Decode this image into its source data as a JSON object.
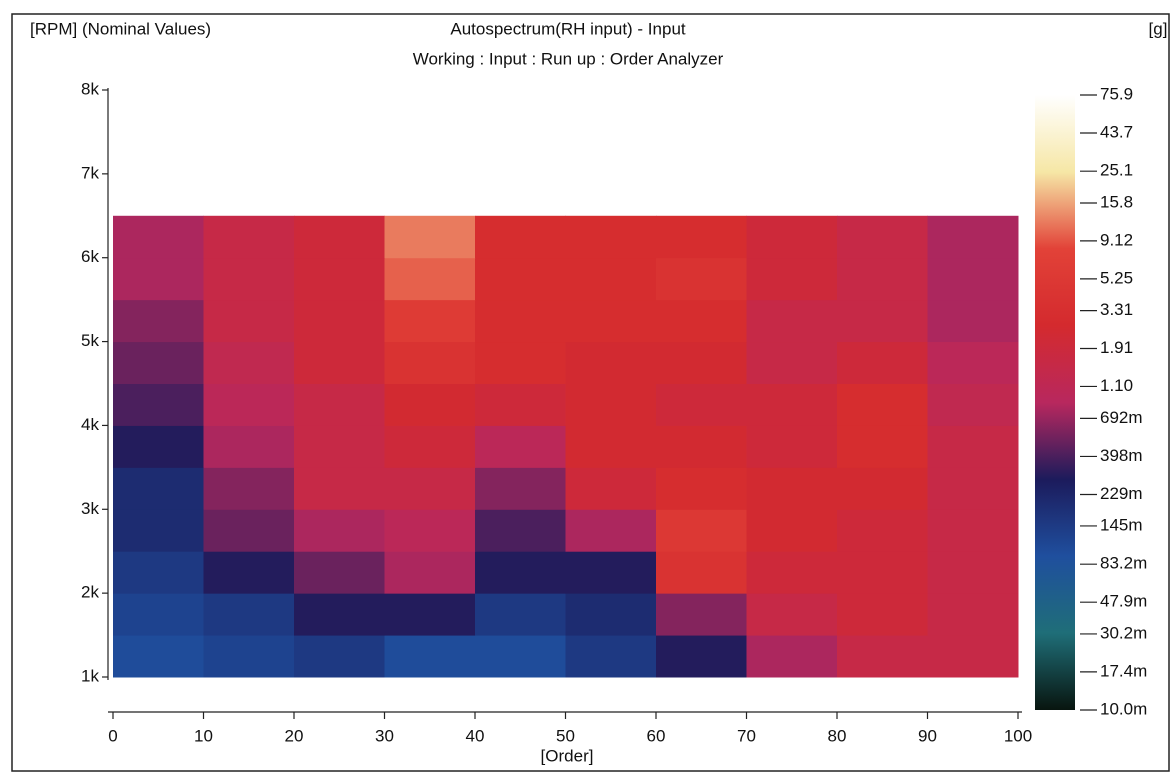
{
  "chart_data": {
    "type": "heatmap",
    "title": "Autospectrum(RH input) - Input",
    "subtitle": "Working : Input : Run up : Order Analyzer",
    "y_label": "[RPM] (Nominal Values)",
    "x_label": "[Order]",
    "colorbar_label": "[g]",
    "xlim": [
      0,
      100
    ],
    "xticks": [
      0,
      10,
      20,
      30,
      40,
      50,
      60,
      70,
      80,
      90,
      100
    ],
    "ylim": [
      1000,
      8000
    ],
    "yticks": [
      {
        "value": 1000,
        "label": "1k"
      },
      {
        "value": 2000,
        "label": "2k"
      },
      {
        "value": 3000,
        "label": "3k"
      },
      {
        "value": 4000,
        "label": "4k"
      },
      {
        "value": 5000,
        "label": "5k"
      },
      {
        "value": 6000,
        "label": "6k"
      },
      {
        "value": 7000,
        "label": "7k"
      },
      {
        "value": 8000,
        "label": "8k"
      }
    ],
    "x": [
      0,
      10,
      20,
      30,
      40,
      50,
      60,
      70,
      80,
      90,
      100
    ],
    "y": [
      1000,
      1500,
      2000,
      2500,
      3000,
      3500,
      4000,
      4500,
      5000,
      5500,
      6000,
      6500
    ],
    "z": [
      [
        0.1,
        0.12,
        0.15,
        0.1,
        0.1,
        0.15,
        0.3,
        0.8,
        1.5,
        1.5
      ],
      [
        0.12,
        0.15,
        0.3,
        0.3,
        0.15,
        0.2,
        0.6,
        1.5,
        2,
        1.5
      ],
      [
        0.15,
        0.3,
        0.5,
        0.8,
        0.3,
        0.3,
        4,
        2,
        2,
        1.5
      ],
      [
        0.2,
        0.5,
        0.8,
        1,
        0.4,
        0.8,
        5,
        2.5,
        2,
        1.5
      ],
      [
        0.2,
        0.6,
        1.5,
        1.5,
        0.6,
        2,
        3,
        2.5,
        2.5,
        1.5
      ],
      [
        0.3,
        0.8,
        1.5,
        2,
        1,
        2.5,
        2.5,
        2,
        3,
        1.5
      ],
      [
        0.4,
        1,
        1.5,
        2.5,
        2,
        2.5,
        2,
        2,
        3,
        1.2
      ],
      [
        0.5,
        1.2,
        2,
        4,
        3,
        2.5,
        2.5,
        1.5,
        2,
        1
      ],
      [
        0.6,
        1.5,
        2,
        6,
        3,
        3,
        3,
        1.5,
        1.5,
        0.8
      ],
      [
        0.8,
        1.5,
        2,
        10,
        3,
        3,
        4,
        2,
        1.5,
        0.8
      ],
      [
        0.8,
        1.5,
        2,
        12,
        3,
        3,
        3,
        2,
        1.5,
        0.8
      ]
    ],
    "color_scale": "log",
    "clim": [
      0.01,
      75.9
    ],
    "colormap": [
      "#08150f",
      "#1f6e78",
      "#1f4f9e",
      "#1c1b5c",
      "#b8285e",
      "#d42a2e",
      "#e24238",
      "#f6e7a6",
      "#ffffff"
    ],
    "cticks": [
      75.9,
      43.7,
      25.1,
      15.8,
      9.12,
      5.25,
      3.31,
      1.91,
      {
        "value": 1.1,
        "label": "1.10"
      },
      {
        "value": 0.692,
        "label": "692m"
      },
      {
        "value": 0.398,
        "label": "398m"
      },
      {
        "value": 0.229,
        "label": "229m"
      },
      {
        "value": 0.145,
        "label": "145m"
      },
      {
        "value": 0.0832,
        "label": "83.2m"
      },
      {
        "value": 0.0479,
        "label": "47.9m"
      },
      {
        "value": 0.0302,
        "label": "30.2m"
      },
      {
        "value": 0.0174,
        "label": "17.4m"
      },
      {
        "value": 0.01,
        "label": "10.0m"
      }
    ]
  }
}
